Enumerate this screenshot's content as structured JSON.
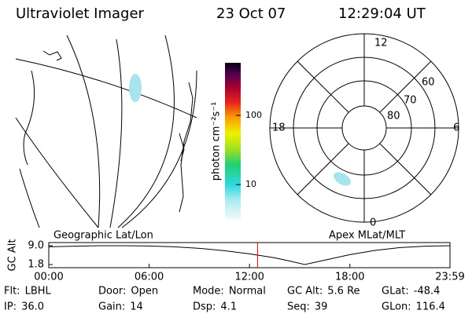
{
  "header": {
    "title": "Ultraviolet Imager",
    "date": "23 Oct 07",
    "time": "12:29:04 UT"
  },
  "colorbar": {
    "label": "photon cm⁻²s⁻¹",
    "scale": "log",
    "range": [
      3.1,
      575
    ],
    "ticks": [
      100,
      10
    ]
  },
  "polar": {
    "mlt_labels": [
      "12",
      "6",
      "0",
      "18"
    ],
    "mlat_labels": [
      "60",
      "70",
      "80"
    ]
  },
  "panel_labels": {
    "left": "Geographic Lat/Lon",
    "right": "Apex MLat/MLT"
  },
  "timeline": {
    "y_label": "GC Alt",
    "ylim": [
      1.8,
      9.0
    ],
    "yticks": [
      {
        "value": 9.0,
        "label": "9.0"
      },
      {
        "value": 1.8,
        "label": "1.8"
      }
    ],
    "xlim": [
      0,
      23.983
    ],
    "xticks": [
      {
        "value": 0,
        "label": "00:00"
      },
      {
        "value": 6,
        "label": "06:00"
      },
      {
        "value": 12,
        "label": "12:00"
      },
      {
        "value": 18,
        "label": "18:00"
      },
      {
        "value": 23.983,
        "label": "23:59"
      }
    ],
    "x": [
      0,
      1.5,
      3,
      4.5,
      6,
      7.5,
      9,
      10.5,
      12,
      13.5,
      14.5,
      15.3,
      16.5,
      18,
      19.5,
      21,
      22.5,
      23.983
    ],
    "values": [
      8.6,
      8.8,
      9.0,
      9.0,
      8.9,
      8.6,
      8.0,
      7.1,
      5.9,
      4.4,
      3.0,
      1.8,
      3.5,
      5.6,
      7.2,
      8.3,
      8.8,
      9.0
    ],
    "current_time": 12.48,
    "current_color": "#d00000",
    "line_color": "#000000"
  },
  "footer": {
    "rows": [
      [
        {
          "label": "Flt:",
          "value": "LBHL"
        },
        {
          "label": "Door:",
          "value": "Open"
        },
        {
          "label": "Mode:",
          "value": "Normal"
        },
        {
          "label": "GC Alt:",
          "value": "5.6 Re"
        },
        {
          "label": "GLat:",
          "value": "-48.4"
        }
      ],
      [
        {
          "label": "IP:",
          "value": "36.0"
        },
        {
          "label": "Gain:",
          "value": "14"
        },
        {
          "label": "Dsp:",
          "value": "4.1"
        },
        {
          "label": "Seq:",
          "value": "39"
        },
        {
          "label": "GLon:",
          "value": "116.4"
        }
      ]
    ]
  }
}
